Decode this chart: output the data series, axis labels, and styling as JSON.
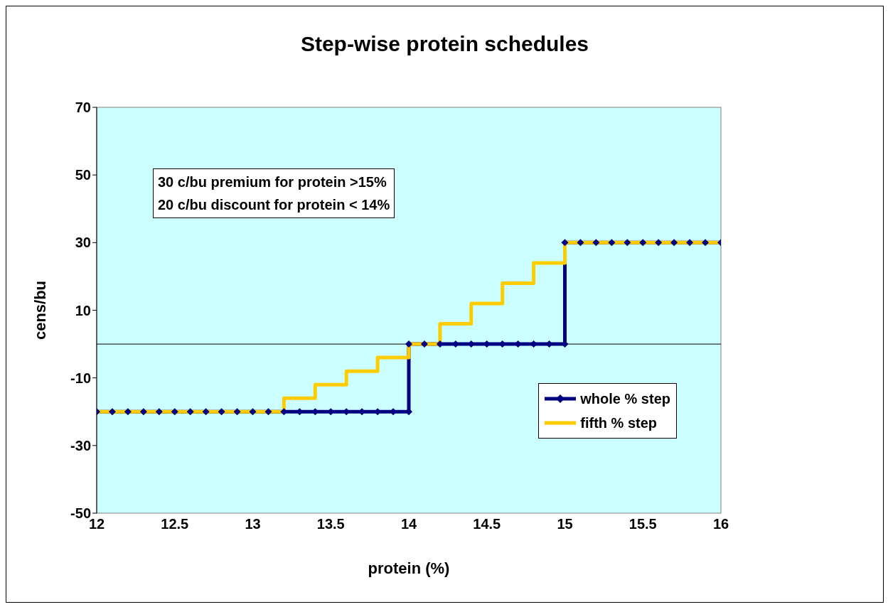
{
  "chart_data": {
    "type": "line",
    "title": "Step-wise protein schedules",
    "xlabel": "protein (%)",
    "ylabel": "cens/bu",
    "annotations": [
      "30 c/bu premium for protein >15%",
      "20 c/bu discount for protein < 14%"
    ],
    "xlim": [
      12,
      16
    ],
    "xticks": [
      12,
      12.5,
      13,
      13.5,
      14,
      14.5,
      15,
      15.5,
      16
    ],
    "ylim": [
      -50,
      70
    ],
    "yticks": [
      -50,
      -30,
      -10,
      10,
      30,
      50,
      70
    ],
    "grid": false,
    "legend": "right",
    "line_style": "solid",
    "ref_lines": [
      {
        "axis": "y",
        "value": 0,
        "color": "#000000"
      }
    ],
    "series": [
      {
        "name": "whole % step",
        "color": "#000080",
        "marker": "diamond",
        "x": [
          12,
          12.1,
          12.2,
          12.3,
          12.4,
          12.5,
          12.6,
          12.7,
          12.8,
          12.9,
          13,
          13.1,
          13.2,
          13.3,
          13.4,
          13.5,
          13.6,
          13.7,
          13.8,
          13.9,
          14,
          14,
          14.1,
          14.2,
          14.3,
          14.4,
          14.5,
          14.6,
          14.7,
          14.8,
          14.9,
          15,
          15,
          15.1,
          15.2,
          15.3,
          15.4,
          15.5,
          15.6,
          15.7,
          15.8,
          15.9,
          16
        ],
        "values": [
          -20,
          -20,
          -20,
          -20,
          -20,
          -20,
          -20,
          -20,
          -20,
          -20,
          -20,
          -20,
          -20,
          -20,
          -20,
          -20,
          -20,
          -20,
          -20,
          -20,
          -20,
          0,
          0,
          0,
          0,
          0,
          0,
          0,
          0,
          0,
          0,
          0,
          30,
          30,
          30,
          30,
          30,
          30,
          30,
          30,
          30,
          30,
          30
        ]
      },
      {
        "name": "fifth % step",
        "color": "#ffcc00",
        "marker": "none",
        "x": [
          12,
          13.2,
          13.2,
          13.4,
          13.4,
          13.6,
          13.6,
          13.8,
          13.8,
          14,
          14,
          14.2,
          14.2,
          14.4,
          14.4,
          14.6,
          14.6,
          14.8,
          14.8,
          15,
          15,
          16
        ],
        "values": [
          -20,
          -20,
          -16,
          -16,
          -12,
          -12,
          -8,
          -8,
          -4,
          -4,
          0,
          0,
          6,
          6,
          12,
          12,
          18,
          18,
          24,
          24,
          30,
          30
        ]
      }
    ]
  }
}
